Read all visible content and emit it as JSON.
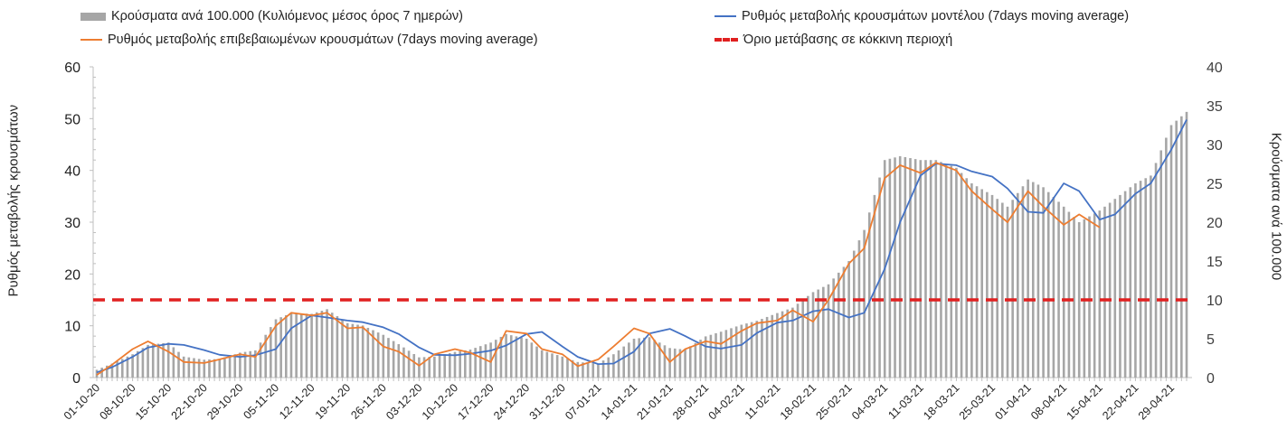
{
  "legend": {
    "bars": "Κρούσματα ανά 100.000 (Κυλιόμενος μέσος όρος 7 ημερών)",
    "model": "Ρυθμός μεταβολής κρουσμάτων μοντέλου (7days moving average)",
    "confirmed": "Ρυθμός μεταβολής επιβεβαιωμένων κρουσμάτων (7days moving average)",
    "threshold": "Όριο μετάβασης σε κόκκινη περιοχή"
  },
  "axes": {
    "left_label": "Ρυθμός μεταβολής κρουσμάτων",
    "right_label": "Κρούσματα ανά 100.000"
  },
  "colors": {
    "bars": "#a6a6a6",
    "model": "#4472c4",
    "confirmed": "#ed7d31",
    "threshold": "#e02020",
    "axis": "#bfbfbf"
  },
  "chart_data": {
    "type": "bar+line",
    "x_start": "2020-10-01",
    "x_end": "2021-05-02",
    "x_ticks": [
      "01-10-20",
      "08-10-20",
      "15-10-20",
      "22-10-20",
      "29-10-20",
      "05-11-20",
      "12-11-20",
      "19-11-20",
      "26-11-20",
      "03-12-20",
      "10-12-20",
      "17-12-20",
      "24-12-20",
      "31-12-20",
      "07-01-21",
      "14-01-21",
      "21-01-21",
      "28-01-21",
      "04-02-21",
      "11-02-21",
      "18-02-21",
      "25-02-21",
      "04-03-21",
      "11-03-21",
      "18-03-21",
      "25-03-21",
      "01-04-21",
      "08-04-21",
      "15-04-21",
      "22-04-21",
      "29-04-21"
    ],
    "y_left": {
      "min": 0,
      "max": 60,
      "ticks": [
        0,
        10,
        20,
        30,
        40,
        50,
        60
      ]
    },
    "y_right": {
      "min": 0,
      "max": 40,
      "ticks": [
        0,
        5,
        10,
        15,
        20,
        25,
        30,
        35,
        40
      ]
    },
    "bars_per_100k": {
      "axis": "right",
      "points": [
        [
          "2020-10-01",
          1
        ],
        [
          "2020-10-04",
          1.8
        ],
        [
          "2020-10-08",
          3
        ],
        [
          "2020-10-11",
          4.2
        ],
        [
          "2020-10-15",
          4.5
        ],
        [
          "2020-10-18",
          2.7
        ],
        [
          "2020-10-22",
          2.3
        ],
        [
          "2020-10-25",
          2.4
        ],
        [
          "2020-10-29",
          3.2
        ],
        [
          "2020-11-01",
          3.5
        ],
        [
          "2020-11-05",
          7.5
        ],
        [
          "2020-11-08",
          8.3
        ],
        [
          "2020-11-12",
          8.2
        ],
        [
          "2020-11-15",
          8.8
        ],
        [
          "2020-11-19",
          7
        ],
        [
          "2020-11-22",
          6.7
        ],
        [
          "2020-11-26",
          5.5
        ],
        [
          "2020-11-29",
          4.3
        ],
        [
          "2020-12-03",
          2.6
        ],
        [
          "2020-12-06",
          2.7
        ],
        [
          "2020-12-10",
          3.3
        ],
        [
          "2020-12-13",
          3.6
        ],
        [
          "2020-12-17",
          4.5
        ],
        [
          "2020-12-20",
          5.6
        ],
        [
          "2020-12-24",
          5
        ],
        [
          "2020-12-27",
          3.5
        ],
        [
          "2020-12-31",
          2.7
        ],
        [
          "2021-01-03",
          2
        ],
        [
          "2021-01-07",
          1.8
        ],
        [
          "2021-01-10",
          3
        ],
        [
          "2021-01-14",
          5
        ],
        [
          "2021-01-17",
          5.2
        ],
        [
          "2021-01-21",
          3.8
        ],
        [
          "2021-01-24",
          3.6
        ],
        [
          "2021-01-28",
          5.3
        ],
        [
          "2021-01-31",
          5.9
        ],
        [
          "2021-02-04",
          6.8
        ],
        [
          "2021-02-07",
          7.3
        ],
        [
          "2021-02-11",
          8.3
        ],
        [
          "2021-02-14",
          9
        ],
        [
          "2021-02-18",
          11
        ],
        [
          "2021-02-21",
          12
        ],
        [
          "2021-02-25",
          15
        ],
        [
          "2021-02-28",
          19
        ],
        [
          "2021-03-04",
          28
        ],
        [
          "2021-03-07",
          28.5
        ],
        [
          "2021-03-11",
          28
        ],
        [
          "2021-03-14",
          28
        ],
        [
          "2021-03-18",
          27
        ],
        [
          "2021-03-21",
          25
        ],
        [
          "2021-03-25",
          23.5
        ],
        [
          "2021-03-28",
          22
        ],
        [
          "2021-04-01",
          25.5
        ],
        [
          "2021-04-04",
          24.5
        ],
        [
          "2021-04-08",
          22
        ],
        [
          "2021-04-11",
          20
        ],
        [
          "2021-04-15",
          21.5
        ],
        [
          "2021-04-18",
          23
        ],
        [
          "2021-04-22",
          25
        ],
        [
          "2021-04-25",
          26
        ],
        [
          "2021-04-29",
          32.5
        ],
        [
          "2021-05-02",
          34.2
        ]
      ]
    },
    "model_rate": {
      "axis": "left",
      "points": [
        [
          "2020-10-01",
          1
        ],
        [
          "2020-10-04",
          2
        ],
        [
          "2020-10-08",
          4
        ],
        [
          "2020-10-11",
          5.8
        ],
        [
          "2020-10-15",
          6.5
        ],
        [
          "2020-10-18",
          6.3
        ],
        [
          "2020-10-22",
          5.3
        ],
        [
          "2020-10-25",
          4.4
        ],
        [
          "2020-10-29",
          4
        ],
        [
          "2020-11-01",
          4.3
        ],
        [
          "2020-11-05",
          5.5
        ],
        [
          "2020-11-08",
          9.5
        ],
        [
          "2020-11-12",
          12
        ],
        [
          "2020-11-15",
          11.6
        ],
        [
          "2020-11-19",
          11
        ],
        [
          "2020-11-22",
          10.7
        ],
        [
          "2020-11-26",
          9.7
        ],
        [
          "2020-11-29",
          8.4
        ],
        [
          "2020-12-03",
          5.8
        ],
        [
          "2020-12-06",
          4.4
        ],
        [
          "2020-12-10",
          4.3
        ],
        [
          "2020-12-13",
          4.6
        ],
        [
          "2020-12-17",
          5.2
        ],
        [
          "2020-12-20",
          6.2
        ],
        [
          "2020-12-24",
          8.4
        ],
        [
          "2020-12-27",
          8.8
        ],
        [
          "2020-12-31",
          6
        ],
        [
          "2021-01-03",
          4
        ],
        [
          "2021-01-07",
          2.6
        ],
        [
          "2021-01-10",
          2.7
        ],
        [
          "2021-01-14",
          5
        ],
        [
          "2021-01-17",
          8.5
        ],
        [
          "2021-01-21",
          9.4
        ],
        [
          "2021-01-24",
          8
        ],
        [
          "2021-01-28",
          6
        ],
        [
          "2021-01-31",
          5.6
        ],
        [
          "2021-02-04",
          6.3
        ],
        [
          "2021-02-07",
          8.6
        ],
        [
          "2021-02-11",
          10.6
        ],
        [
          "2021-02-14",
          11
        ],
        [
          "2021-02-18",
          12.8
        ],
        [
          "2021-02-21",
          13.2
        ],
        [
          "2021-02-25",
          11.6
        ],
        [
          "2021-02-28",
          12.5
        ],
        [
          "2021-03-04",
          21
        ],
        [
          "2021-03-07",
          30
        ],
        [
          "2021-03-11",
          39
        ],
        [
          "2021-03-14",
          41.3
        ],
        [
          "2021-03-18",
          41
        ],
        [
          "2021-03-21",
          39.8
        ],
        [
          "2021-03-25",
          38.8
        ],
        [
          "2021-03-28",
          36.5
        ],
        [
          "2021-04-01",
          32
        ],
        [
          "2021-04-04",
          31.8
        ],
        [
          "2021-04-08",
          37.5
        ],
        [
          "2021-04-11",
          36
        ],
        [
          "2021-04-15",
          30.5
        ],
        [
          "2021-04-18",
          31.5
        ],
        [
          "2021-04-22",
          35.5
        ],
        [
          "2021-04-25",
          37.5
        ],
        [
          "2021-04-29",
          44
        ],
        [
          "2021-05-02",
          49.8
        ]
      ]
    },
    "confirmed_rate": {
      "axis": "left",
      "points": [
        [
          "2020-10-01",
          0.5
        ],
        [
          "2020-10-04",
          2.5
        ],
        [
          "2020-10-08",
          5.5
        ],
        [
          "2020-10-11",
          7
        ],
        [
          "2020-10-15",
          5
        ],
        [
          "2020-10-18",
          3
        ],
        [
          "2020-10-22",
          2.8
        ],
        [
          "2020-10-25",
          3.5
        ],
        [
          "2020-10-29",
          4.5
        ],
        [
          "2020-11-01",
          4
        ],
        [
          "2020-11-05",
          10
        ],
        [
          "2020-11-08",
          12.5
        ],
        [
          "2020-11-12",
          12
        ],
        [
          "2020-11-15",
          12.5
        ],
        [
          "2020-11-19",
          9.5
        ],
        [
          "2020-11-22",
          9.7
        ],
        [
          "2020-11-26",
          6
        ],
        [
          "2020-11-29",
          5
        ],
        [
          "2020-12-03",
          2.3
        ],
        [
          "2020-12-06",
          4.5
        ],
        [
          "2020-12-10",
          5.5
        ],
        [
          "2020-12-13",
          4.8
        ],
        [
          "2020-12-17",
          3
        ],
        [
          "2020-12-20",
          9
        ],
        [
          "2020-12-24",
          8.5
        ],
        [
          "2020-12-27",
          5.5
        ],
        [
          "2020-12-31",
          4.5
        ],
        [
          "2021-01-03",
          2.2
        ],
        [
          "2021-01-07",
          3.5
        ],
        [
          "2021-01-10",
          6
        ],
        [
          "2021-01-14",
          9.5
        ],
        [
          "2021-01-17",
          8.5
        ],
        [
          "2021-01-21",
          3
        ],
        [
          "2021-01-24",
          5.5
        ],
        [
          "2021-01-28",
          7
        ],
        [
          "2021-01-31",
          6.5
        ],
        [
          "2021-02-04",
          9
        ],
        [
          "2021-02-07",
          10.5
        ],
        [
          "2021-02-11",
          11
        ],
        [
          "2021-02-14",
          13
        ],
        [
          "2021-02-18",
          10.8
        ],
        [
          "2021-02-21",
          15
        ],
        [
          "2021-02-25",
          22
        ],
        [
          "2021-02-28",
          25
        ],
        [
          "2021-03-04",
          38.5
        ],
        [
          "2021-03-07",
          41
        ],
        [
          "2021-03-11",
          39.5
        ],
        [
          "2021-03-14",
          41.5
        ],
        [
          "2021-03-18",
          40
        ],
        [
          "2021-03-21",
          36
        ],
        [
          "2021-03-25",
          32.5
        ],
        [
          "2021-03-28",
          30
        ],
        [
          "2021-04-01",
          36
        ],
        [
          "2021-04-04",
          33
        ],
        [
          "2021-04-08",
          29.5
        ],
        [
          "2021-04-11",
          31.5
        ],
        [
          "2021-04-15",
          29
        ]
      ]
    },
    "threshold": {
      "axis": "left",
      "value": 15
    }
  }
}
